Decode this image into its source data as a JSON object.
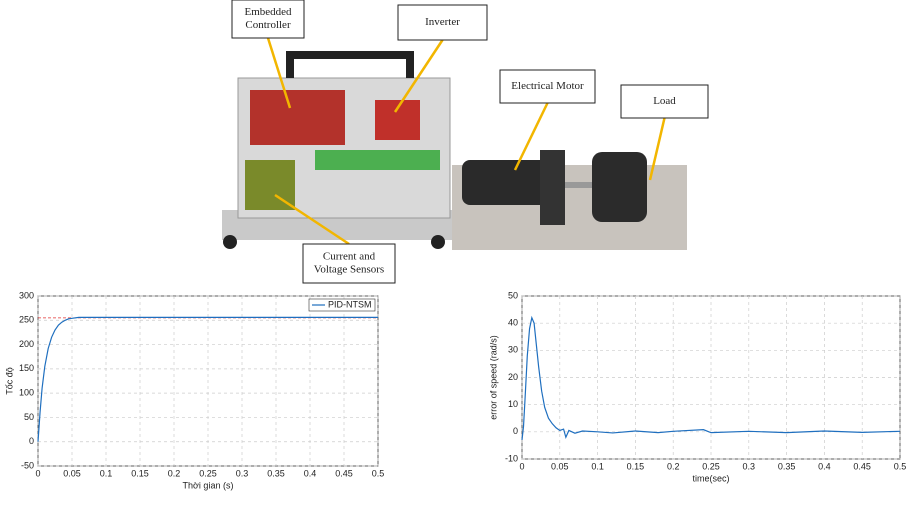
{
  "diagram": {
    "labels": [
      {
        "lines": [
          "Embedded",
          "Controller"
        ]
      },
      {
        "lines": [
          "Inverter"
        ]
      },
      {
        "lines": [
          "Electrical Motor"
        ]
      },
      {
        "lines": [
          "Load"
        ]
      },
      {
        "lines": [
          "Current and",
          "Voltage Sensors"
        ]
      }
    ]
  },
  "chart_data": [
    {
      "type": "line",
      "xlabel": "Thời gian (s)",
      "ylabel": "Tốc độ",
      "xlim": [
        0,
        0.5
      ],
      "xticks": [
        0,
        0.05,
        0.1,
        0.15,
        0.2,
        0.25,
        0.3,
        0.35,
        0.4,
        0.45,
        0.5
      ],
      "ylim": [
        -50,
        300
      ],
      "yticks": [
        -50,
        0,
        50,
        100,
        150,
        200,
        250,
        300
      ],
      "grid": true,
      "legend": "upper-right",
      "reference_line": {
        "value": 255,
        "color": "#e03030",
        "style": "dashed"
      },
      "series": [
        {
          "name": "PID-NTSM",
          "color": "#1f6fbf",
          "x": [
            0,
            0.003,
            0.006,
            0.01,
            0.015,
            0.02,
            0.025,
            0.03,
            0.035,
            0.04,
            0.045,
            0.05,
            0.06,
            0.08,
            0.1,
            0.2,
            0.3,
            0.4,
            0.5
          ],
          "values": [
            0,
            60,
            110,
            155,
            192,
            215,
            230,
            240,
            246,
            250,
            253,
            254,
            256,
            256,
            256,
            256,
            256,
            256,
            256
          ]
        }
      ]
    },
    {
      "type": "line",
      "xlabel": "time(sec)",
      "ylabel": "error of speed (rad/s)",
      "xlim": [
        0,
        0.5
      ],
      "xticks": [
        0,
        0.05,
        0.1,
        0.15,
        0.2,
        0.25,
        0.3,
        0.35,
        0.4,
        0.45,
        0.5
      ],
      "ylim": [
        -10,
        50
      ],
      "yticks": [
        -10,
        0,
        10,
        20,
        30,
        40,
        50
      ],
      "grid": true,
      "series": [
        {
          "name": "",
          "color": "#1f6fbf",
          "x": [
            0,
            0.002,
            0.004,
            0.007,
            0.01,
            0.013,
            0.016,
            0.019,
            0.022,
            0.026,
            0.03,
            0.035,
            0.04,
            0.045,
            0.05,
            0.055,
            0.058,
            0.062,
            0.07,
            0.08,
            0.1,
            0.12,
            0.15,
            0.18,
            0.2,
            0.24,
            0.25,
            0.3,
            0.35,
            0.4,
            0.45,
            0.5
          ],
          "values": [
            -3,
            2,
            12,
            28,
            38,
            42,
            40,
            32,
            24,
            15,
            9,
            5,
            3,
            1.5,
            0.5,
            1,
            -2,
            0.5,
            -0.5,
            0.3,
            0,
            -0.4,
            0.3,
            -0.3,
            0.2,
            0.8,
            -0.3,
            0.2,
            -0.3,
            0.3,
            -0.2,
            0.2
          ]
        }
      ]
    }
  ]
}
